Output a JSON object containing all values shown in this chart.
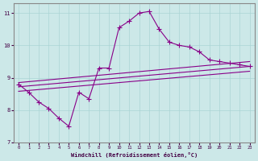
{
  "xlabel": "Windchill (Refroidissement éolien,°C)",
  "xlim": [
    -0.5,
    23.5
  ],
  "ylim": [
    7,
    11.3
  ],
  "yticks": [
    7,
    8,
    9,
    10,
    11
  ],
  "xticks": [
    0,
    1,
    2,
    3,
    4,
    5,
    6,
    7,
    8,
    9,
    10,
    11,
    12,
    13,
    14,
    15,
    16,
    17,
    18,
    19,
    20,
    21,
    22,
    23
  ],
  "bg_color": "#cce8e8",
  "line_color": "#880088",
  "main_x": [
    0,
    1,
    2,
    3,
    4,
    5,
    6,
    7,
    8,
    9,
    10,
    11,
    12,
    13,
    14,
    15,
    16,
    17,
    18,
    19,
    20,
    21,
    22,
    23
  ],
  "main_y": [
    8.8,
    8.55,
    8.25,
    8.05,
    7.75,
    7.5,
    8.55,
    8.35,
    9.3,
    9.3,
    10.55,
    10.75,
    11.0,
    11.05,
    10.5,
    10.1,
    10.0,
    9.95,
    9.8,
    9.55,
    9.5,
    9.45,
    9.4,
    9.35
  ],
  "trend1_x": [
    0,
    23
  ],
  "trend1_y": [
    8.85,
    9.5
  ],
  "trend2_x": [
    0,
    23
  ],
  "trend2_y": [
    8.72,
    9.35
  ],
  "trend3_x": [
    0,
    23
  ],
  "trend3_y": [
    8.58,
    9.2
  ]
}
